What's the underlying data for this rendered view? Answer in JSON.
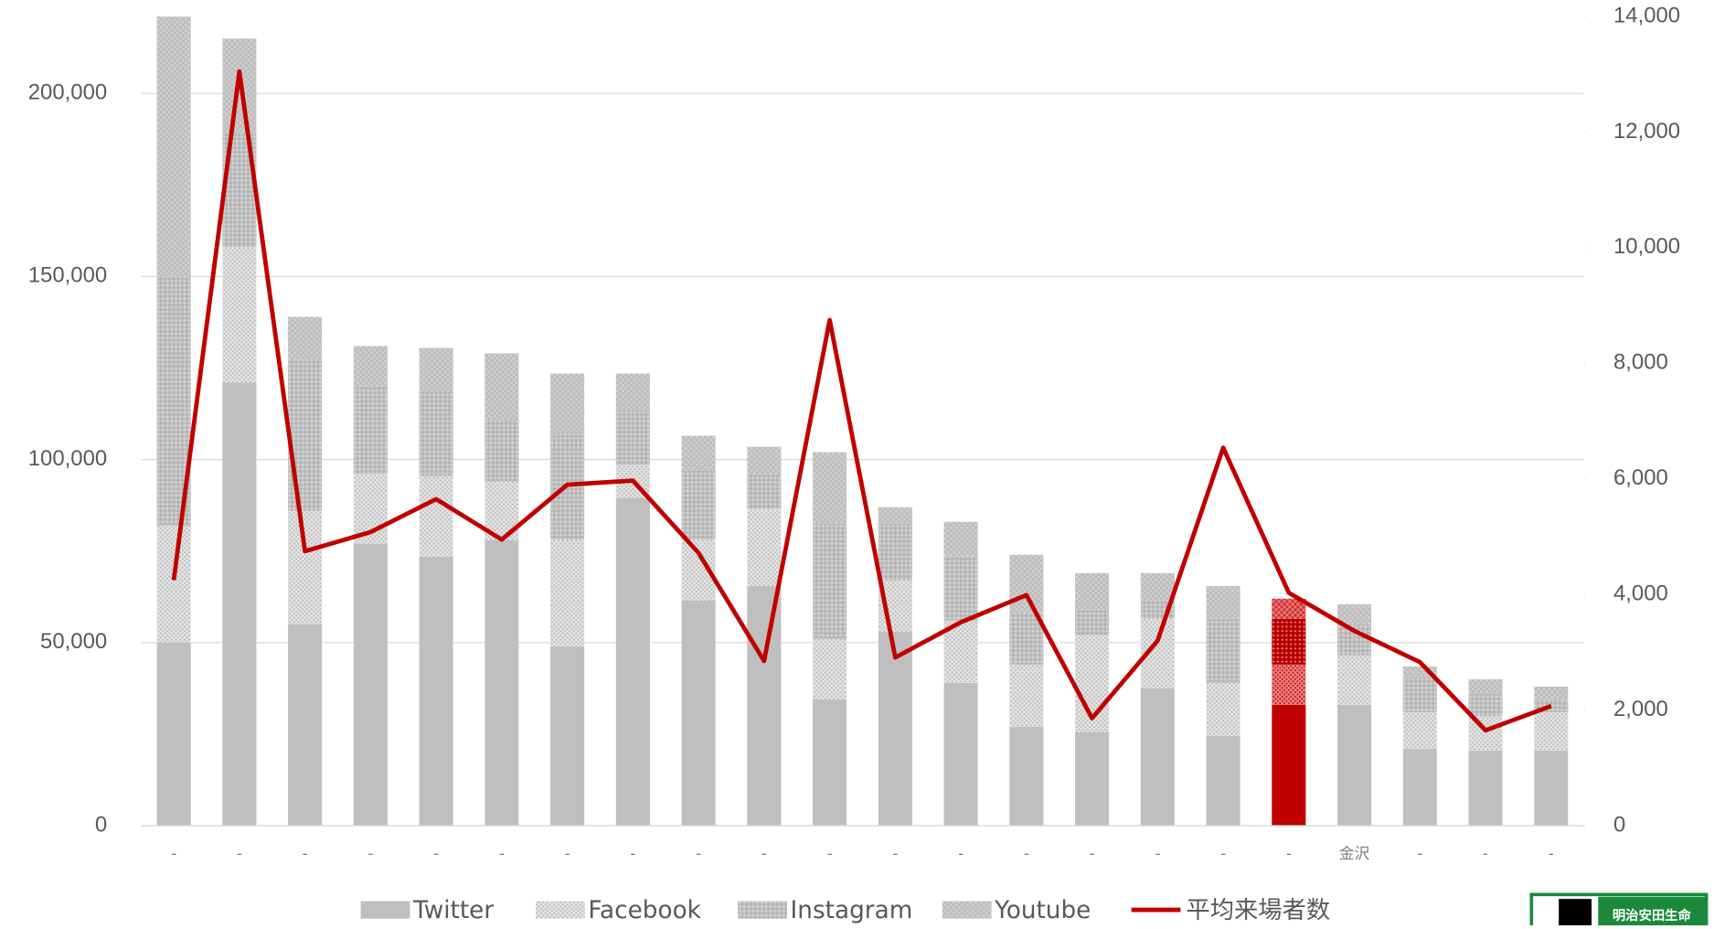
{
  "chart_data": {
    "type": "stacked-bar-line",
    "categories": [
      "-",
      "-",
      "-",
      "-",
      "-",
      "-",
      "-",
      "-",
      "-",
      "-",
      "-",
      "-",
      "-",
      "-",
      "-",
      "-",
      "-",
      "-",
      "金沢",
      "-",
      "-",
      "-"
    ],
    "series": [
      {
        "name": "Twitter",
        "color": "#bfbfbf",
        "pattern": "solid",
        "values": [
          50000,
          121000,
          55000,
          77000,
          73500,
          78000,
          49000,
          89500,
          61500,
          65500,
          34500,
          53000,
          39000,
          27000,
          25500,
          37500,
          24500,
          33000,
          33000,
          21000,
          20500,
          20500
        ]
      },
      {
        "name": "Facebook",
        "color": "#bfbfbf",
        "pattern": "fine-dots",
        "values": [
          32000,
          37000,
          31000,
          19000,
          22000,
          16000,
          29000,
          9000,
          16500,
          21000,
          16500,
          14000,
          17000,
          17000,
          26500,
          19000,
          14500,
          11000,
          13500,
          10000,
          9500,
          10500
        ]
      },
      {
        "name": "Instagram",
        "color": "#bfbfbf",
        "pattern": "dense-dots",
        "values": [
          68000,
          31000,
          41500,
          24000,
          23000,
          17000,
          29500,
          15000,
          19000,
          9500,
          31500,
          15500,
          17500,
          14000,
          7000,
          5000,
          17500,
          12500,
          8500,
          9500,
          6000,
          3500
        ]
      },
      {
        "name": "Youtube",
        "color": "#bfbfbf",
        "pattern": "cross",
        "values": [
          71000,
          26000,
          11500,
          11000,
          12000,
          18000,
          16000,
          10000,
          9500,
          7500,
          19500,
          4500,
          9500,
          16000,
          10000,
          7500,
          9000,
          5500,
          5500,
          3000,
          4000,
          3500
        ]
      },
      {
        "name": "平均来場者数",
        "color": "#c00000",
        "axis": "y2",
        "kind": "line",
        "values": [
          4250,
          13050,
          4750,
          5080,
          5650,
          4950,
          5900,
          5970,
          4720,
          2850,
          8750,
          2910,
          3520,
          3990,
          1860,
          3200,
          6540,
          4030,
          3370,
          2830,
          1650,
          2070
        ]
      }
    ],
    "highlight_index": 17,
    "highlight_color": "#c00000",
    "ylim": [
      0,
      221000
    ],
    "yticks": [
      0,
      {
        "value": 50000,
        "label": "50,000"
      },
      {
        "value": 100000,
        "label": "100,000"
      },
      {
        "value": 150000,
        "label": "150,000"
      },
      {
        "value": 200000,
        "label": "200,000"
      }
    ],
    "y2lim": [
      0,
      14000
    ],
    "y2ticks": [
      0,
      {
        "value": 2000,
        "label": "2,000"
      },
      {
        "value": 4000,
        "label": "4,000"
      },
      {
        "value": 6000,
        "label": "6,000"
      },
      {
        "value": 8000,
        "label": "8,000"
      },
      {
        "value": 10000,
        "label": "10,000"
      },
      {
        "value": 12000,
        "label": "12,000"
      },
      {
        "value": 14000,
        "label": "14,000"
      }
    ],
    "grid": true,
    "legend": "bottom"
  },
  "logo": "明治安田生命"
}
